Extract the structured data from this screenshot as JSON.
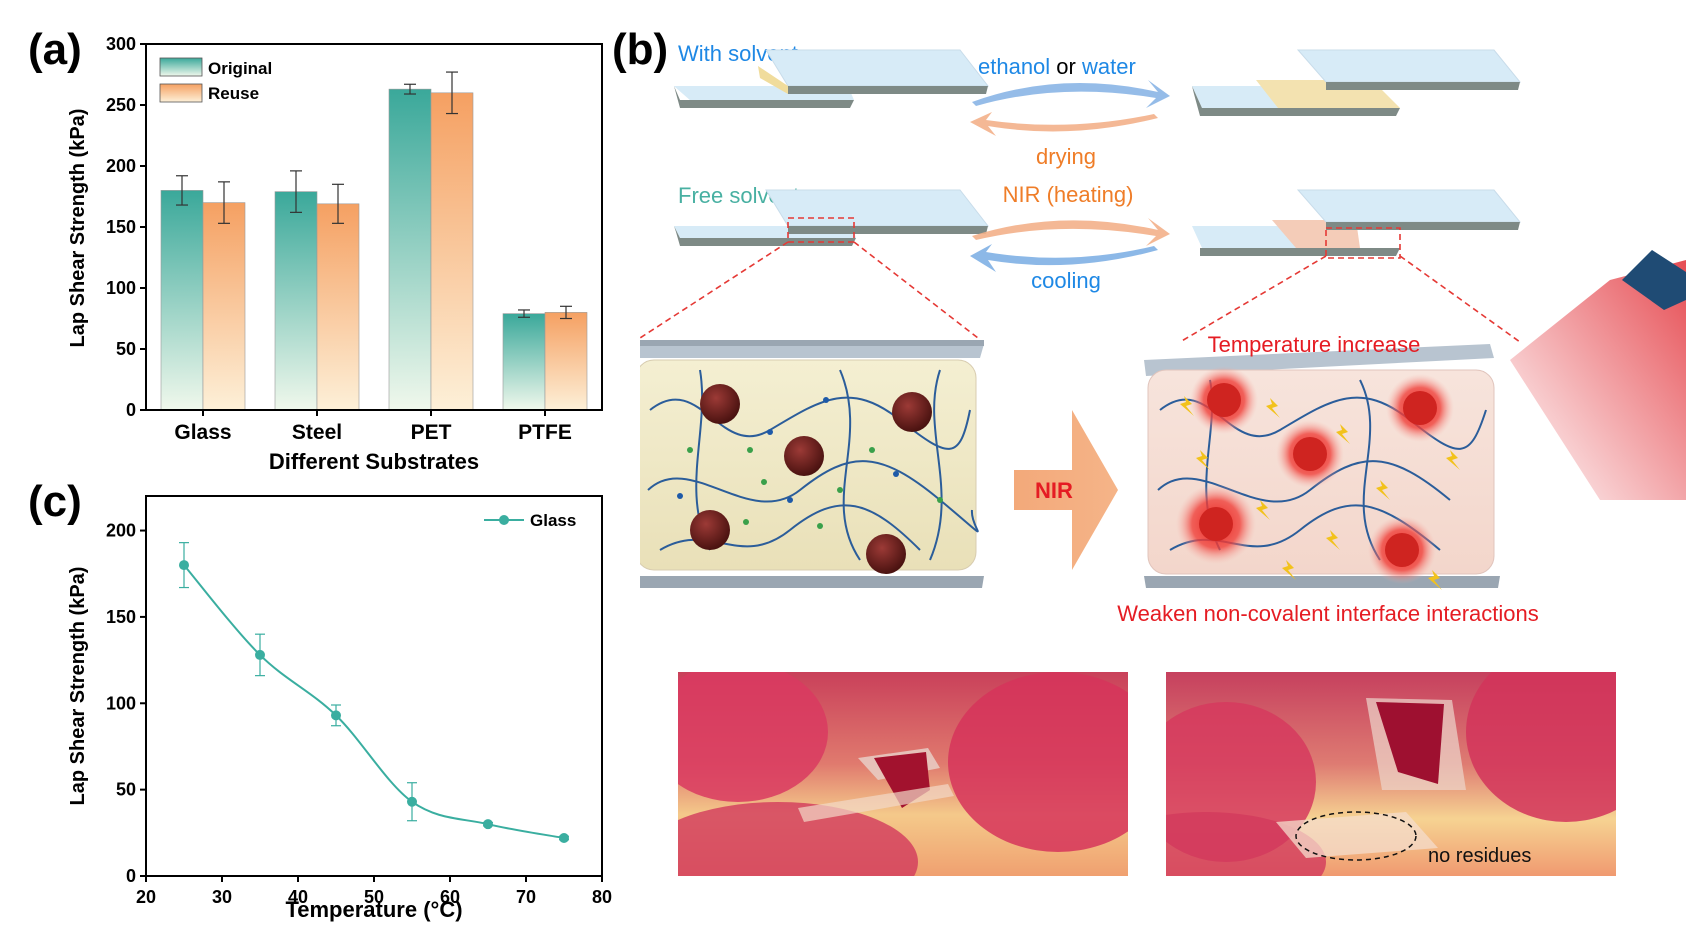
{
  "panel_labels": {
    "a": "(a)",
    "b": "(b)",
    "c": "(c)"
  },
  "colors": {
    "teal": "#3aa89a",
    "teal_light": "#eaf5e6",
    "orange": "#f5a062",
    "orange_light": "#fdebd0",
    "blue_text": "#1e88e5",
    "orange_text": "#ef7d28",
    "teal_text": "#48b0a2",
    "red_text": "#e51c23"
  },
  "chart_data": [
    {
      "id": "a",
      "type": "bar",
      "xlabel": "Different Substrates",
      "ylabel": "Lap Shear Strength (kPa)",
      "ylim": [
        0,
        300
      ],
      "yticks": [
        "0",
        "50",
        "100",
        "150",
        "200",
        "250",
        "300"
      ],
      "categories": [
        "Glass",
        "Steel",
        "PET",
        "PTFE"
      ],
      "series": [
        {
          "name": "Original",
          "values": [
            180,
            179,
            263,
            79
          ],
          "errors": [
            12,
            17,
            4,
            3
          ]
        },
        {
          "name": "Reuse",
          "values": [
            170,
            169,
            260,
            80
          ],
          "errors": [
            17,
            16,
            17,
            5
          ]
        }
      ],
      "legend": "top-left"
    },
    {
      "id": "c",
      "type": "line",
      "xlabel": "Temperature (°C)",
      "ylabel": "Lap Shear Strength (kPa)",
      "xlim": [
        20,
        80
      ],
      "ylim": [
        0,
        220
      ],
      "xticks": [
        "20",
        "30",
        "40",
        "50",
        "60",
        "70",
        "80"
      ],
      "yticks": [
        "0",
        "50",
        "100",
        "150",
        "200"
      ],
      "series": [
        {
          "name": "Glass",
          "x": [
            25,
            35,
            45,
            55,
            65,
            75
          ],
          "y": [
            180,
            128,
            93,
            43,
            30,
            22
          ],
          "errors": [
            13,
            12,
            6,
            11,
            1,
            1
          ]
        }
      ],
      "legend": "top-right"
    }
  ],
  "diagram": {
    "with_solvent": "With solvent",
    "free_solvent": "Free solvent",
    "ethanol": "ethanol",
    "or": " or ",
    "water": "water",
    "drying": "drying",
    "nir_heating": "NIR (heating)",
    "cooling": "cooling",
    "nir": "NIR",
    "temperature_increase": "Temperature increase",
    "weaken": "Weaken non-covalent interface interactions",
    "no_residues": "no residues"
  }
}
